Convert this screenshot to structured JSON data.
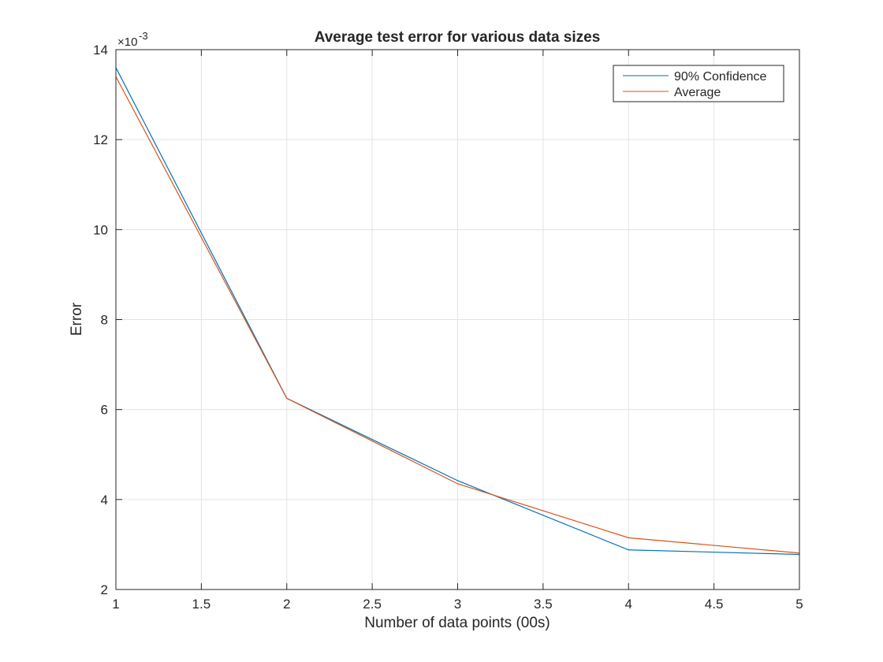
{
  "chart_data": {
    "type": "line",
    "title": "Average test error for various data sizes",
    "xlabel": "Number of data points (00s)",
    "ylabel": "Error",
    "y_exponent_label": "×10",
    "y_exponent_power": "-3",
    "y_exponent": -3,
    "xlim": [
      1,
      5
    ],
    "ylim": [
      2,
      14
    ],
    "xticks": [
      1,
      1.5,
      2,
      2.5,
      3,
      3.5,
      4,
      4.5,
      5
    ],
    "xtick_labels": [
      "1",
      "1.5",
      "2",
      "2.5",
      "3",
      "3.5",
      "4",
      "4.5",
      "5"
    ],
    "yticks": [
      2,
      4,
      6,
      8,
      10,
      12,
      14
    ],
    "ytick_labels": [
      "2",
      "4",
      "6",
      "8",
      "10",
      "12",
      "14"
    ],
    "grid": true,
    "legend_position": "top-right",
    "x": [
      1,
      2,
      3,
      4,
      5
    ],
    "series": [
      {
        "name": "90% Confidence",
        "color": "#0072BD",
        "values": [
          13.6,
          6.25,
          4.42,
          2.88,
          2.78
        ]
      },
      {
        "name": "Average",
        "color": "#D95319",
        "values": [
          13.4,
          6.25,
          4.35,
          3.15,
          2.81
        ]
      }
    ]
  }
}
